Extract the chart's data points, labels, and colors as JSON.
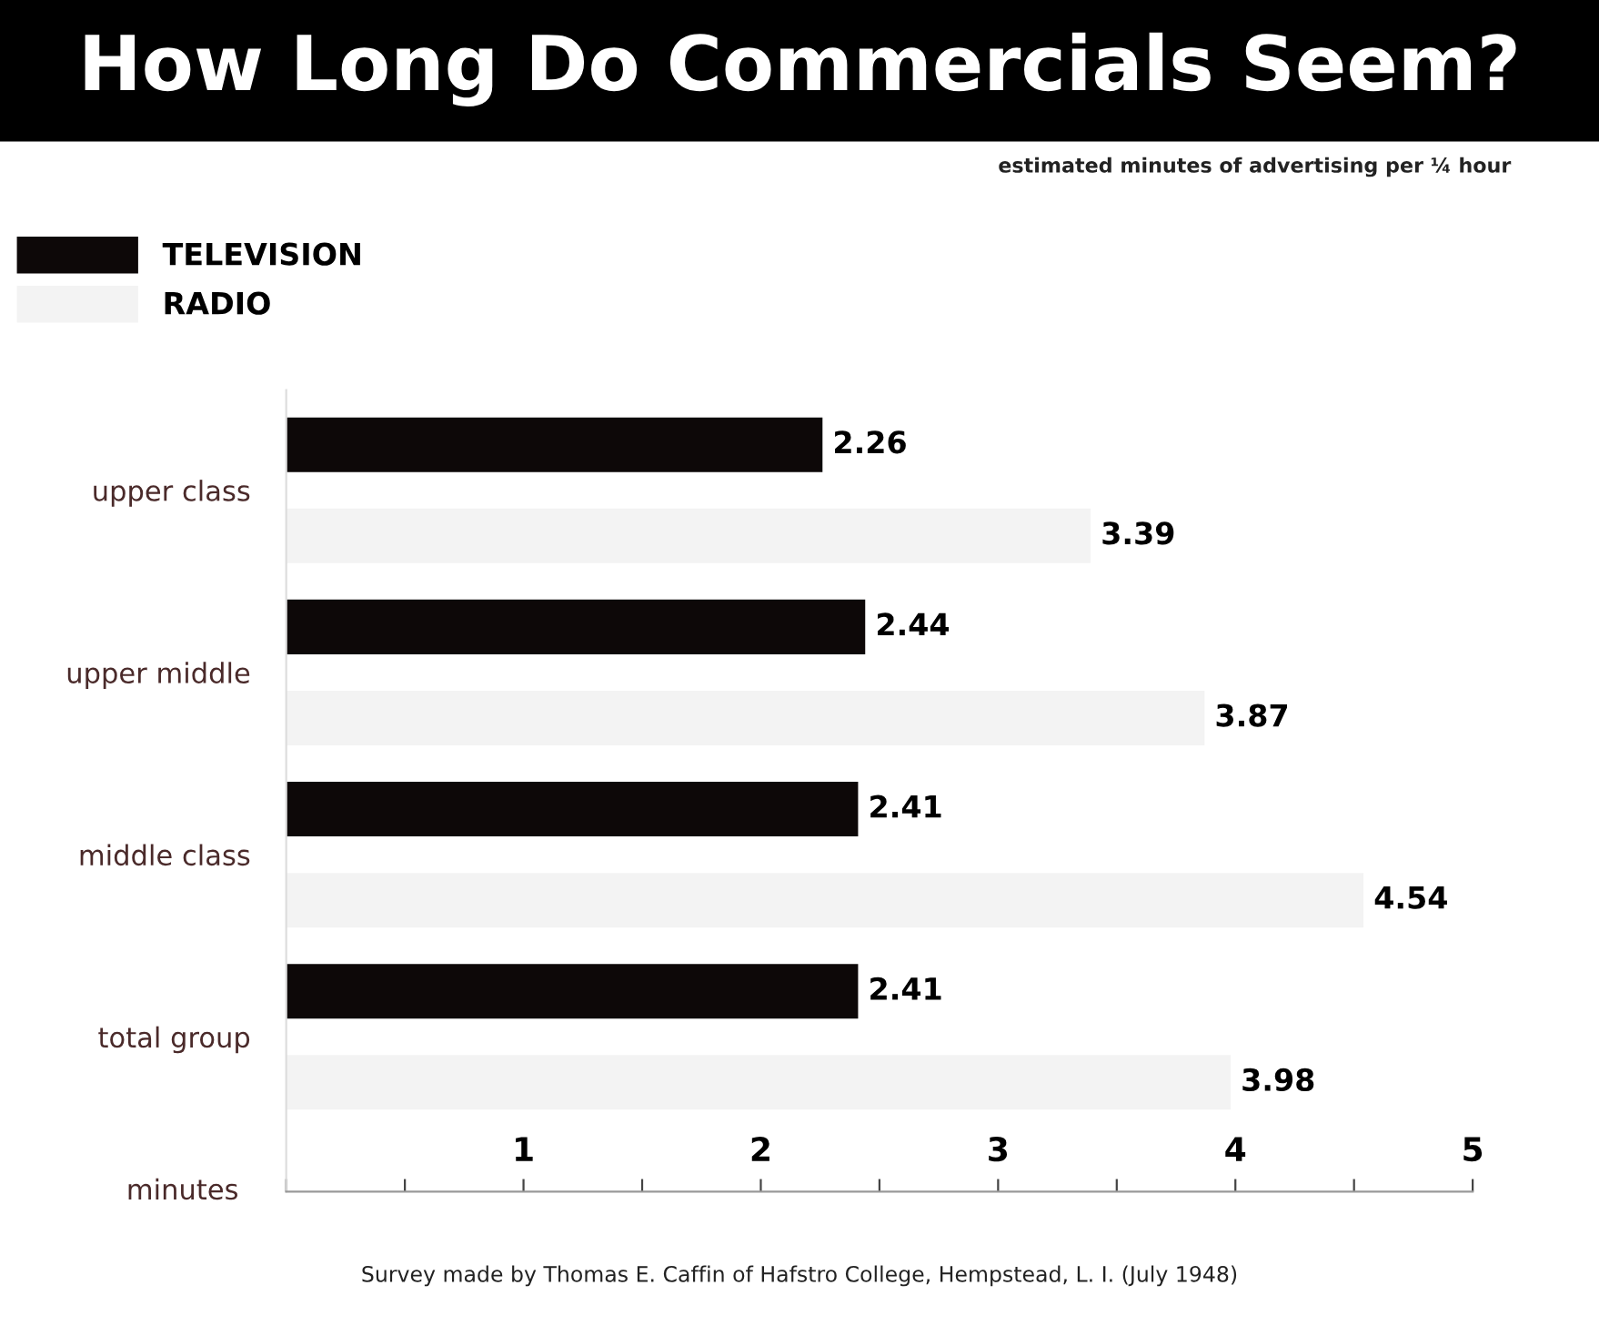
{
  "chart_data": {
    "type": "bar",
    "orientation": "horizontal",
    "title": "How Long Do Commercials Seem?",
    "subtitle": "estimated minutes of advertising per ¼ hour",
    "xlabel": "minutes",
    "categories": [
      "upper class",
      "upper middle",
      "middle class",
      "total group"
    ],
    "series": [
      {
        "name": "TELEVISION",
        "color": "#0d0808",
        "values": [
          2.26,
          2.44,
          2.41,
          2.41
        ]
      },
      {
        "name": "RADIO",
        "color": "#f3f3f3",
        "values": [
          3.39,
          3.87,
          4.54,
          3.98
        ]
      }
    ],
    "xlim": [
      0,
      5
    ],
    "xticks": [
      {
        "value": 0,
        "label": null
      },
      {
        "value": 0.5,
        "label": null
      },
      1,
      {
        "value": 1.5,
        "label": null
      },
      2,
      {
        "value": 2.5,
        "label": null
      },
      3,
      {
        "value": 3.5,
        "label": null
      },
      4,
      {
        "value": 4.5,
        "label": null
      },
      5
    ],
    "data_labels": true,
    "legend": "top left",
    "grid": false,
    "annotations": [
      "Survey made by Thomas E. Caffin of Hafstro College, Hempstead, L. I. (July 1948)"
    ]
  }
}
